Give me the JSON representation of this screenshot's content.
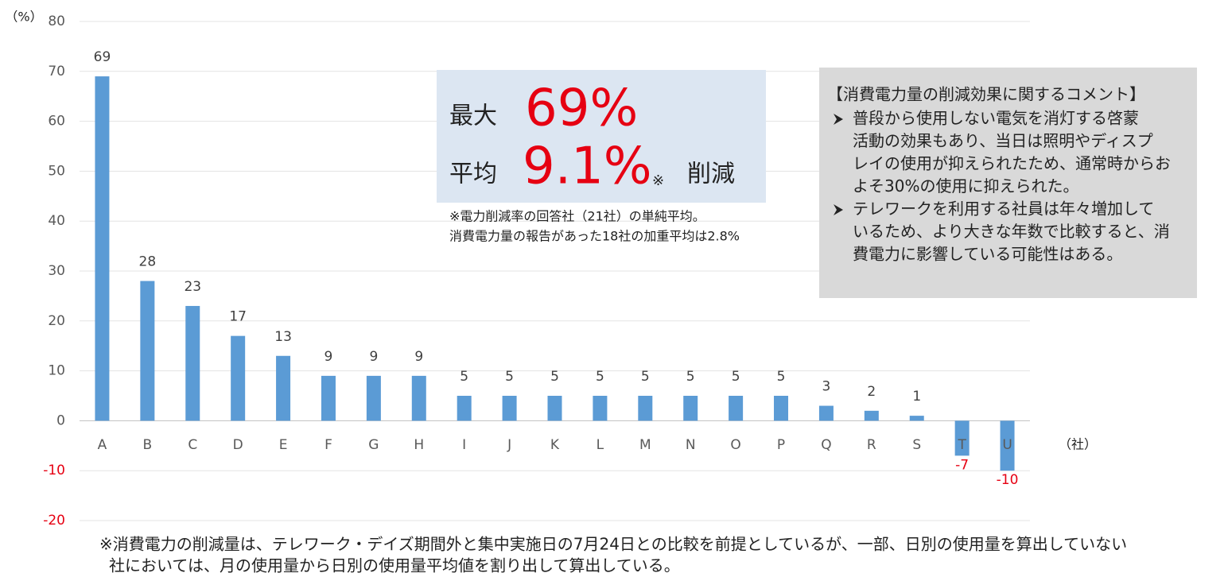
{
  "chart_data": {
    "type": "bar",
    "y_unit": "（%）",
    "x_unit": "（社）",
    "categories": [
      "A",
      "B",
      "C",
      "D",
      "E",
      "F",
      "G",
      "H",
      "I",
      "J",
      "K",
      "L",
      "M",
      "N",
      "O",
      "P",
      "Q",
      "R",
      "S",
      "T",
      "U"
    ],
    "values": [
      69,
      28,
      23,
      17,
      13,
      9,
      9,
      9,
      5,
      5,
      5,
      5,
      5,
      5,
      5,
      5,
      3,
      2,
      1,
      -7,
      -10
    ],
    "color": "#5b9bd5",
    "negative_label_color": "#e60012",
    "ylim": [
      -20,
      80
    ],
    "yticks": [
      -20,
      -10,
      0,
      10,
      20,
      30,
      40,
      50,
      60,
      70,
      80
    ],
    "grid": true,
    "highlight": {
      "max_label": "最大",
      "max_value": "69%",
      "avg_label": "平均",
      "avg_value": "9.1%",
      "avg_mark": "※",
      "suffix": "削減",
      "notes": [
        "※電力削減率の回答社（21社）の単純平均。",
        "消費電力量の報告があった18社の加重平均は2.8%"
      ]
    },
    "comment": {
      "title": "【消費電力量の削減効果に関するコメント】",
      "bullets": [
        [
          "普段から使用しない電気を消灯する啓蒙",
          "活動の効果もあり、当日は照明やディスプ",
          "レイの使用が抑えられたため、通常時からお",
          "よそ30%の使用に抑えられた。"
        ],
        [
          "テレワークを利用する社員は年々増加して",
          "いるため、より大きな年数で比較すると、消",
          "費電力に影響している可能性はある。"
        ]
      ]
    },
    "footnote": [
      "※消費電力の削減量は、テレワーク・デイズ期間外と集中実施日の7月24日との比較を前提としているが、一部、日別の使用量を算出していない",
      "社においては、月の使用量から日別の使用量平均値を割り出して算出している。"
    ]
  }
}
